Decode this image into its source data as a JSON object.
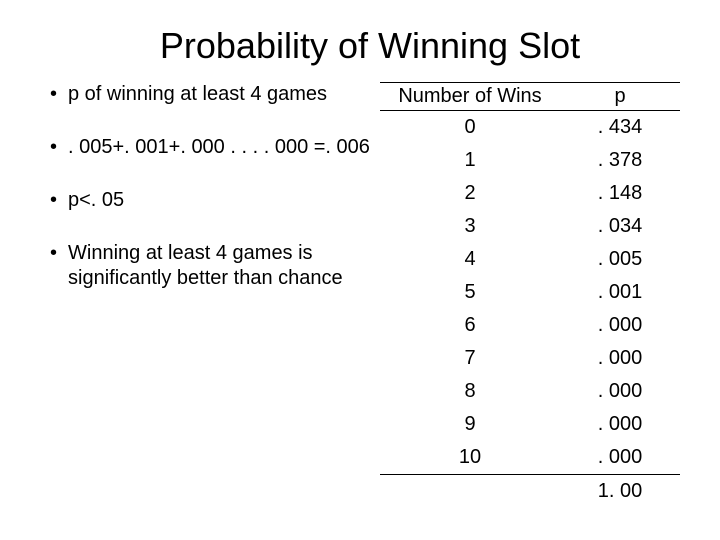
{
  "title": "Probability of Winning Slot",
  "bullets": [
    "p of winning at least 4 games",
    ". 005+. 001+. 000 . . . . 000 =. 006",
    "p<. 05",
    "Winning at least 4 games is significantly better than chance"
  ],
  "table": {
    "headers": [
      "Number of Wins",
      "p"
    ],
    "rows": [
      [
        "0",
        ". 434"
      ],
      [
        "1",
        ". 378"
      ],
      [
        "2",
        ". 148"
      ],
      [
        "3",
        ". 034"
      ],
      [
        "4",
        ". 005"
      ],
      [
        "5",
        ". 001"
      ],
      [
        "6",
        ". 000"
      ],
      [
        "7",
        ". 000"
      ],
      [
        "8",
        ". 000"
      ],
      [
        "9",
        ". 000"
      ],
      [
        "10",
        ". 000"
      ]
    ],
    "sum": [
      "",
      "1. 00"
    ]
  },
  "style": {
    "title_fontsize": 36,
    "body_fontsize": 20,
    "text_color": "#000000",
    "background_color": "#ffffff",
    "border_color": "#000000",
    "col_widths": [
      "60%",
      "40%"
    ]
  }
}
